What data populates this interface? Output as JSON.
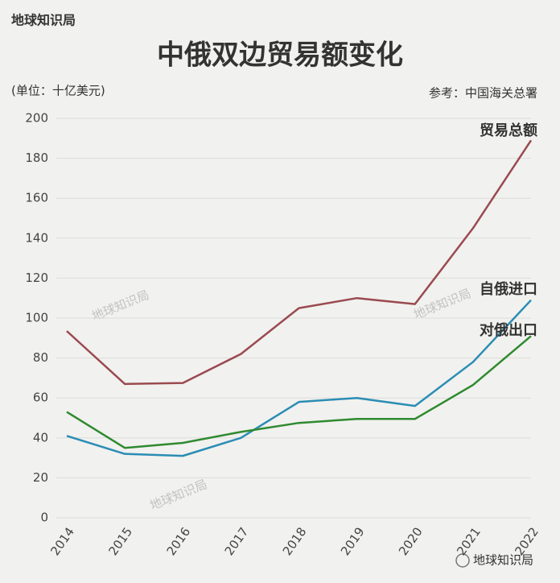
{
  "brand": "地球知识局",
  "chart_data": {
    "type": "line",
    "title": "中俄双边贸易额变化",
    "y_label": "(单位：十亿美元)",
    "source": "参考：中国海关总署",
    "categories": [
      "2014",
      "2015",
      "2016",
      "2017",
      "2018",
      "2019",
      "2020",
      "2021",
      "2022"
    ],
    "series": [
      {
        "name": "贸易总额",
        "color": "#9a4a50",
        "values": [
          93.5,
          67,
          67.5,
          82,
          105,
          110,
          107,
          145,
          189
        ]
      },
      {
        "name": "自俄进口",
        "color": "#2a8db4",
        "values": [
          41,
          32,
          31,
          40,
          58,
          60,
          56,
          78,
          109
        ]
      },
      {
        "name": "对俄出口",
        "color": "#2f8a2f",
        "values": [
          53,
          35,
          37.5,
          43,
          47.5,
          49.5,
          49.5,
          66.5,
          91
        ]
      }
    ],
    "ylim": [
      0,
      200
    ],
    "yticks": [
      0,
      20,
      40,
      60,
      80,
      100,
      120,
      140,
      160,
      180,
      200
    ],
    "grid": true
  }
}
